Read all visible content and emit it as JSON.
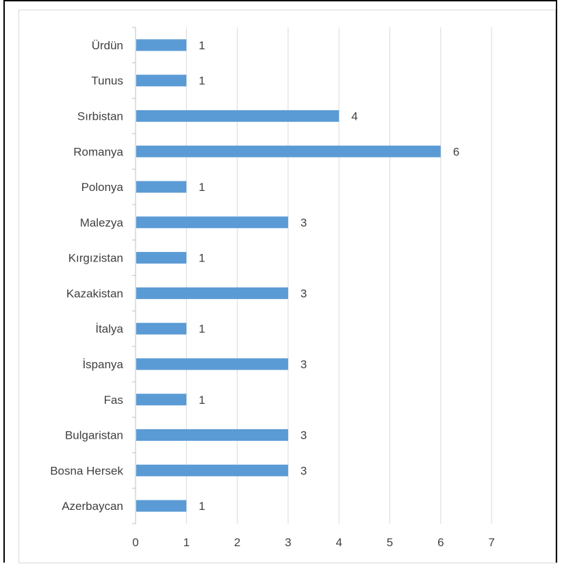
{
  "chart_data": {
    "type": "bar",
    "orientation": "horizontal",
    "categories": [
      "Ürdün",
      "Tunus",
      "Sırbistan",
      "Romanya",
      "Polonya",
      "Malezya",
      "Kırgızistan",
      "Kazakistan",
      "İtalya",
      "İspanya",
      "Fas",
      "Bulgaristan",
      "Bosna Hersek",
      "Azerbaycan"
    ],
    "values": [
      1,
      1,
      4,
      6,
      1,
      3,
      1,
      3,
      1,
      3,
      1,
      3,
      3,
      1
    ],
    "xlim": [
      0,
      7
    ],
    "x_ticks": [
      "0",
      "1",
      "2",
      "3",
      "4",
      "5",
      "6",
      "7"
    ],
    "title": "",
    "xlabel": "",
    "ylabel": "",
    "grid": true,
    "data_labels": true,
    "legend": "none",
    "bar_color": "#5b9bd5",
    "grid_color": "#d9d9d9",
    "text_color": "#404040"
  }
}
